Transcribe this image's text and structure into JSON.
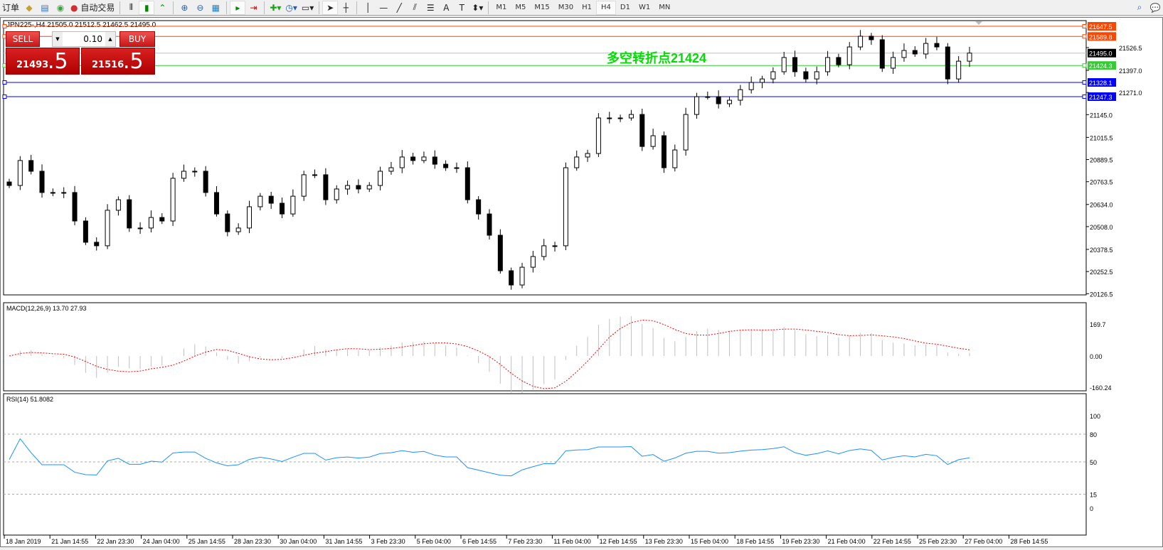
{
  "toolbar": {
    "left_items": [
      {
        "name": "new-order",
        "label": "订单"
      },
      {
        "name": "history-center",
        "icon": "folder-icon"
      },
      {
        "name": "terminal",
        "icon": "terminal-icon"
      },
      {
        "name": "signals",
        "icon": "signal-icon"
      },
      {
        "name": "auto-trading",
        "icon": "auto-trading-icon",
        "label": "自动交易"
      }
    ],
    "timeframes": [
      "M1",
      "M5",
      "M15",
      "M30",
      "H1",
      "H4",
      "D1",
      "W1",
      "MN"
    ],
    "active_timeframe": "H4"
  },
  "chart": {
    "header": "JPN225-,H4  21505.0 21512.5 21462.5 21495.0",
    "annotation": "多空转折点21424",
    "annotation_color": "#00e000",
    "trade_panel": {
      "sell_label": "SELL",
      "buy_label": "BUY",
      "lot": "0.10",
      "sell_big": "21493",
      "sell_small": ".5",
      "buy_big": "21516",
      "buy_small": ".5"
    },
    "hlines": [
      {
        "value": "21647.5",
        "color": "#ff4500"
      },
      {
        "value": "21589.8",
        "color": "#ff4500"
      },
      {
        "value": "21495.0",
        "color": "#000000",
        "line": "#c0c0c0"
      },
      {
        "value": "21424.3",
        "color": "#33cc33"
      },
      {
        "value": "21328.1",
        "color": "#0000ff"
      },
      {
        "value": "21247.3",
        "color": "#0000ff"
      }
    ],
    "price_ticks": [
      "21526.5",
      "21397.0",
      "21271.0",
      "21145.0",
      "21015.5",
      "20889.5",
      "20763.5",
      "20634.0",
      "20508.0",
      "20378.5",
      "20252.5",
      "20126.5"
    ],
    "time_ticks": [
      "18 Jan 2019",
      "21 Jan 14:55",
      "22 Jan 23:30",
      "24 Jan 04:00",
      "25 Jan 14:55",
      "28 Jan 23:30",
      "30 Jan 04:00",
      "31 Jan 14:55",
      "3 Feb 23:30",
      "5 Feb 04:00",
      "6 Feb 14:55",
      "7 Feb 23:30",
      "11 Feb 04:00",
      "12 Feb 14:55",
      "13 Feb 23:30",
      "15 Feb 04:00",
      "18 Feb 14:55",
      "19 Feb 23:30",
      "21 Feb 04:00",
      "22 Feb 14:55",
      "25 Feb 23:30",
      "27 Feb 04:00",
      "28 Feb 14:55"
    ],
    "macd": {
      "label": "MACD(12,26,9) 13.70 27.93",
      "ticks": [
        "169.7",
        "0.00",
        "-160.24"
      ],
      "hist_color": "#c0c0c0",
      "signal_color": "#ff0000"
    },
    "rsi": {
      "label": "RSI(14) 51.8082",
      "ticks": [
        "100",
        "80",
        "50",
        "15",
        "0"
      ],
      "color": "#1e90ff"
    }
  },
  "chart_data": {
    "type": "candlestick",
    "ylim": [
      20126.5,
      21647.5
    ],
    "closes": [
      20742,
      20884,
      20823,
      20702,
      20702,
      20702,
      20540,
      20419,
      20399,
      20601,
      20661,
      20500,
      20500,
      20560,
      20540,
      20783,
      20823,
      20823,
      20702,
      20580,
      20479,
      20500,
      20621,
      20681,
      20641,
      20580,
      20681,
      20803,
      20803,
      20661,
      20722,
      20742,
      20722,
      20742,
      20823,
      20843,
      20904,
      20884,
      20904,
      20863,
      20843,
      20843,
      20661,
      20580,
      20459,
      20257,
      20176,
      20277,
      20338,
      20399,
      20399,
      20843,
      20904,
      20924,
      21126,
      21126,
      21126,
      21146,
      20964,
      21025,
      20843,
      20944,
      21146,
      21247,
      21247,
      21207,
      21227,
      21287,
      21328,
      21348,
      21389,
      21470,
      21389,
      21348,
      21389,
      21470,
      21429,
      21530,
      21591,
      21571,
      21409,
      21470,
      21510,
      21490,
      21550,
      21530,
      21348,
      21449,
      21495
    ]
  }
}
